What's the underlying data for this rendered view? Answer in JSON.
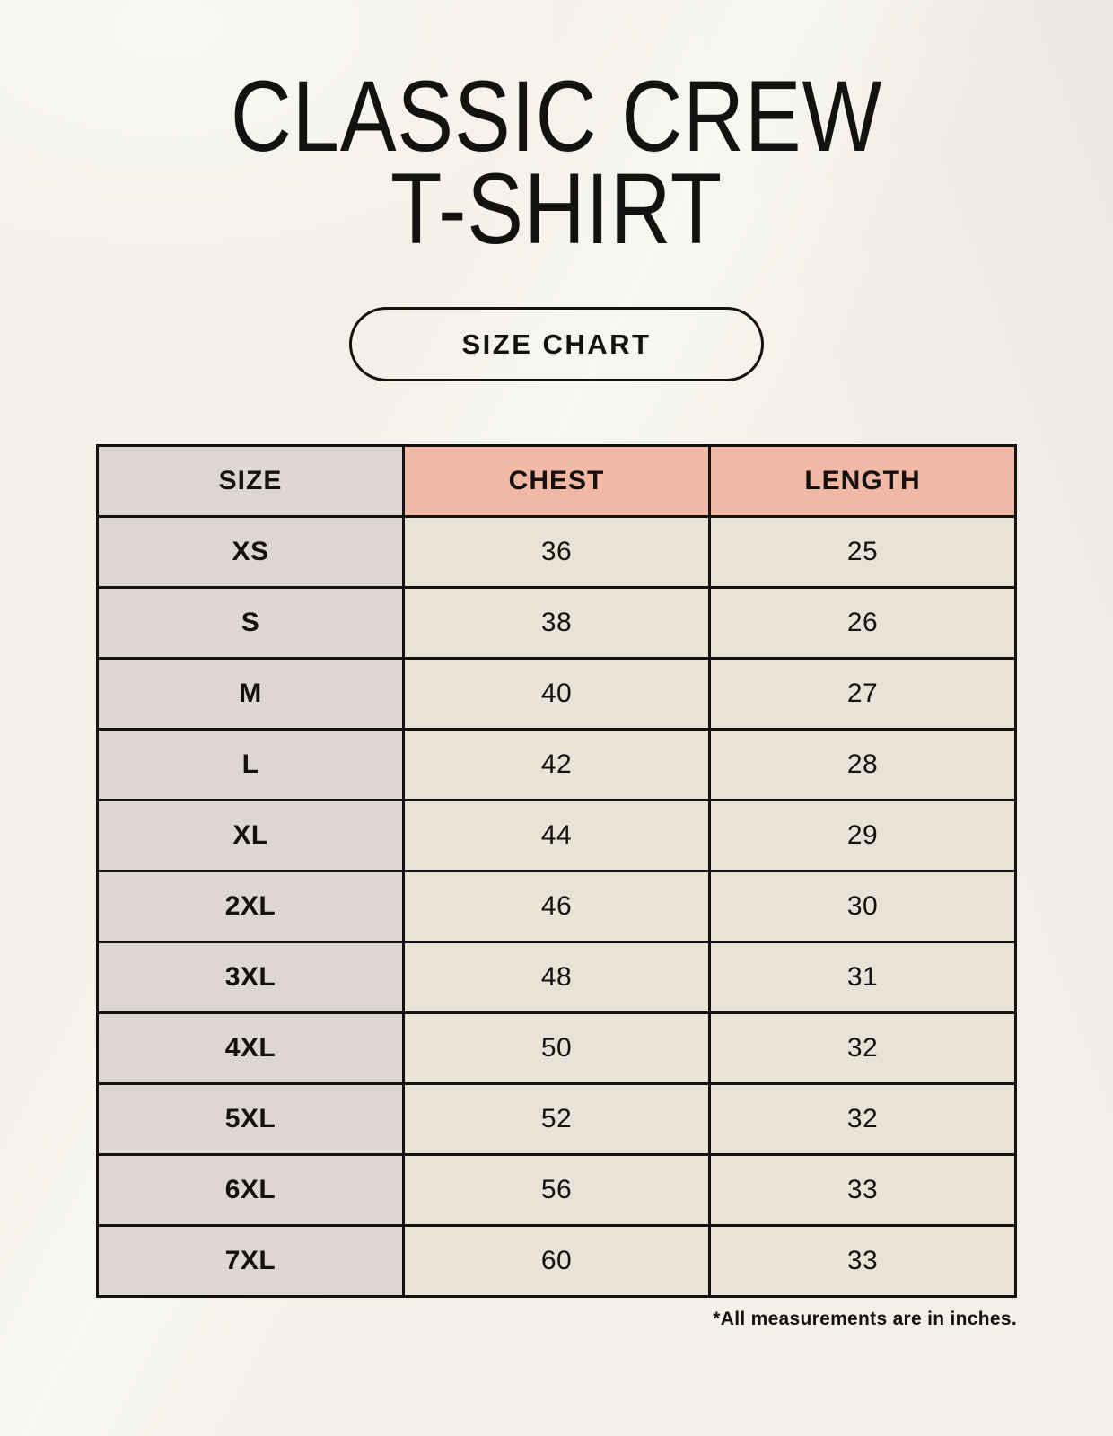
{
  "page": {
    "title_line1": "CLASSIC CREW",
    "title_line2": "T-SHIRT",
    "size_chart_button_label": "SIZE CHART",
    "footnote": "*All measurements are in inches."
  },
  "table": {
    "headers": [
      "SIZE",
      "CHEST",
      "LENGTH"
    ],
    "rows": [
      {
        "size": "XS",
        "chest": "36",
        "length": "25"
      },
      {
        "size": "S",
        "chest": "38",
        "length": "26"
      },
      {
        "size": "M",
        "chest": "40",
        "length": "27"
      },
      {
        "size": "L",
        "chest": "42",
        "length": "28"
      },
      {
        "size": "XL",
        "chest": "44",
        "length": "29"
      },
      {
        "size": "2XL",
        "chest": "46",
        "length": "30"
      },
      {
        "size": "3XL",
        "chest": "48",
        "length": "31"
      },
      {
        "size": "4XL",
        "chest": "50",
        "length": "32"
      },
      {
        "size": "5XL",
        "chest": "52",
        "length": "32"
      },
      {
        "size": "6XL",
        "chest": "56",
        "length": "33"
      },
      {
        "size": "7XL",
        "chest": "60",
        "length": "33"
      }
    ]
  },
  "colors": {
    "background": "#f3f0e8",
    "header_measure_bg": "#f0b8a5",
    "size_col_bg": "#ddd6d2",
    "cell_bg": "#e9e2d6",
    "border": "#141210",
    "text": "#141210"
  }
}
